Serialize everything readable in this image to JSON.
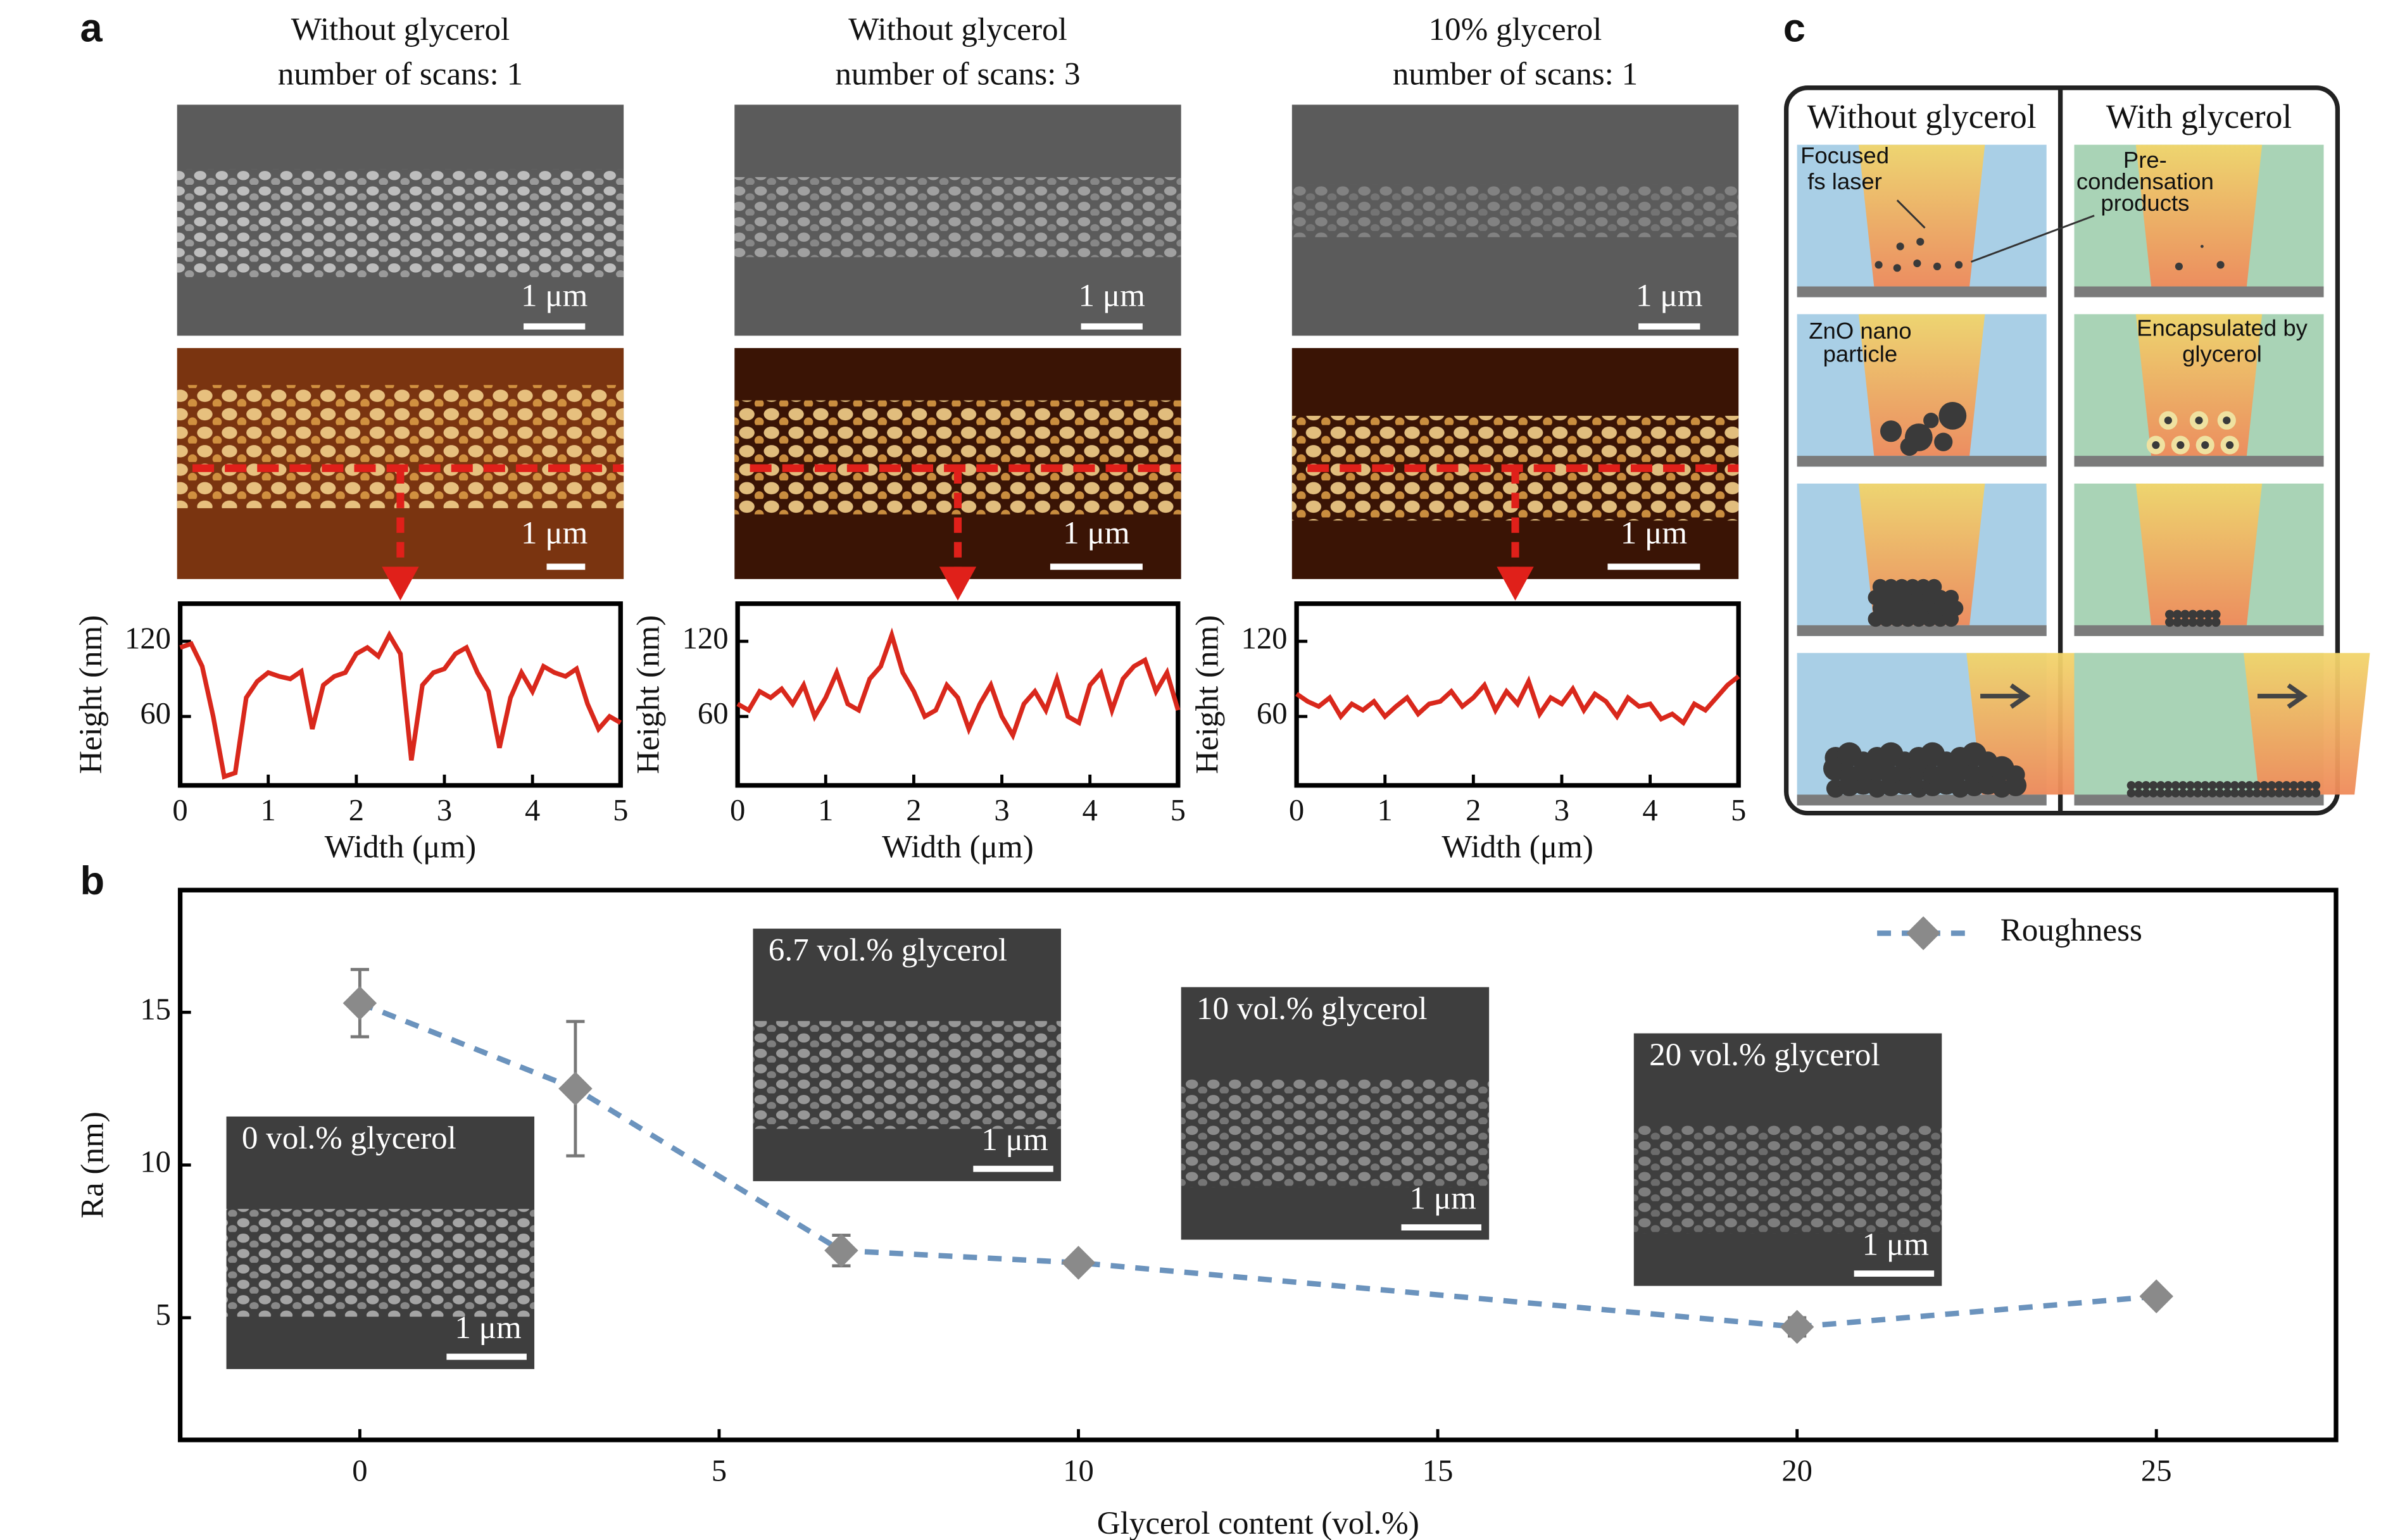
{
  "panel_labels": [
    "a",
    "b",
    "c"
  ],
  "sem_panels": [
    {
      "title": [
        "Without glycerol",
        "number of scans: 1"
      ],
      "sem_scale": "1 μm",
      "afm_scale": "1 μm"
    },
    {
      "title": [
        "Without glycerol",
        "number of scans: 3"
      ],
      "sem_scale": "1 μm",
      "afm_scale": "1 μm"
    },
    {
      "title": [
        "10% glycerol",
        "number of scans: 1"
      ],
      "sem_scale": "1 μm",
      "afm_scale": "1 μm"
    }
  ],
  "chart_data": [
    {
      "type": "line",
      "xlabel": "Width (μm)",
      "ylabel": "Height (nm)",
      "xlim": [
        0,
        5
      ],
      "ylim": [
        5,
        150
      ],
      "xticks": [
        0,
        1,
        2,
        3,
        4,
        5
      ],
      "yticks": [
        60,
        120
      ],
      "x": [
        0,
        0.125,
        0.25,
        0.375,
        0.5,
        0.625,
        0.75,
        0.875,
        1,
        1.125,
        1.25,
        1.375,
        1.5,
        1.625,
        1.75,
        1.875,
        2,
        2.125,
        2.25,
        2.375,
        2.5,
        2.625,
        2.75,
        2.875,
        3,
        3.125,
        3.25,
        3.375,
        3.5,
        3.625,
        3.75,
        3.875,
        4,
        4.125,
        4.25,
        4.375,
        4.5,
        4.625,
        4.75,
        4.875,
        5
      ],
      "color": "#d9281c",
      "values": [
        115,
        118,
        100,
        60,
        12,
        15,
        75,
        88,
        95,
        92,
        90,
        96,
        50,
        85,
        92,
        95,
        110,
        115,
        108,
        125,
        110,
        25,
        85,
        95,
        98,
        110,
        115,
        95,
        80,
        35,
        75,
        95,
        80,
        100,
        95,
        92,
        98,
        70,
        50,
        60,
        55
      ]
    },
    {
      "type": "line",
      "xlabel": "Width (μm)",
      "ylabel": "Height (nm)",
      "xlim": [
        0,
        5
      ],
      "ylim": [
        5,
        150
      ],
      "xticks": [
        0,
        1,
        2,
        3,
        4,
        5
      ],
      "yticks": [
        60,
        120
      ],
      "x": [
        0,
        0.125,
        0.25,
        0.375,
        0.5,
        0.625,
        0.75,
        0.875,
        1,
        1.125,
        1.25,
        1.375,
        1.5,
        1.625,
        1.75,
        1.875,
        2,
        2.125,
        2.25,
        2.375,
        2.5,
        2.625,
        2.75,
        2.875,
        3,
        3.125,
        3.25,
        3.375,
        3.5,
        3.625,
        3.75,
        3.875,
        4,
        4.125,
        4.25,
        4.375,
        4.5,
        4.625,
        4.75,
        4.875,
        5
      ],
      "color": "#d9281c",
      "values": [
        70,
        65,
        80,
        75,
        82,
        70,
        85,
        60,
        75,
        95,
        70,
        65,
        90,
        100,
        125,
        95,
        80,
        60,
        65,
        85,
        75,
        50,
        70,
        85,
        60,
        45,
        70,
        80,
        65,
        90,
        60,
        55,
        85,
        95,
        65,
        90,
        100,
        105,
        80,
        95,
        65
      ]
    },
    {
      "type": "line",
      "xlabel": "Width (μm)",
      "ylabel": "Height (nm)",
      "xlim": [
        0,
        5
      ],
      "ylim": [
        5,
        150
      ],
      "xticks": [
        0,
        1,
        2,
        3,
        4,
        5
      ],
      "yticks": [
        60,
        120
      ],
      "x": [
        0,
        0.125,
        0.25,
        0.375,
        0.5,
        0.625,
        0.75,
        0.875,
        1,
        1.125,
        1.25,
        1.375,
        1.5,
        1.625,
        1.75,
        1.875,
        2,
        2.125,
        2.25,
        2.375,
        2.5,
        2.625,
        2.75,
        2.875,
        3,
        3.125,
        3.25,
        3.375,
        3.5,
        3.625,
        3.75,
        3.875,
        4,
        4.125,
        4.25,
        4.375,
        4.5,
        4.625,
        4.75,
        4.875,
        5
      ],
      "color": "#d9281c",
      "values": [
        78,
        72,
        68,
        75,
        60,
        70,
        65,
        72,
        60,
        68,
        75,
        62,
        70,
        72,
        80,
        68,
        75,
        85,
        65,
        80,
        70,
        88,
        62,
        75,
        70,
        82,
        65,
        78,
        72,
        60,
        75,
        68,
        70,
        58,
        62,
        55,
        70,
        65,
        75,
        85,
        92
      ]
    },
    {
      "type": "errorline",
      "xlabel": "Glycerol content (vol.%)",
      "ylabel": "Ra (nm)",
      "xlim": [
        -2.5,
        27.5
      ],
      "ylim": [
        1,
        19
      ],
      "xticks": [
        0,
        5,
        10,
        15,
        20,
        25
      ],
      "yticks": [
        5,
        10,
        15
      ],
      "legend": "top-right",
      "x": [
        0,
        3,
        6.7,
        10,
        20,
        25
      ],
      "series": [
        {
          "name": "Roughness",
          "color": "#6b93bd",
          "marker_color": "#8a8a8a",
          "values": [
            15.3,
            12.5,
            7.2,
            6.8,
            4.7,
            5.7
          ],
          "errors": [
            1.1,
            2.2,
            0.5,
            0,
            0.3,
            0
          ]
        }
      ]
    }
  ],
  "insets": [
    {
      "label": "0 vol.% glycerol",
      "scale": "1 μm"
    },
    {
      "label": "6.7 vol.% glycerol",
      "scale": "1 μm"
    },
    {
      "label": "10 vol.% glycerol",
      "scale": "1 μm"
    },
    {
      "label": "20 vol.% glycerol",
      "scale": "1 μm"
    }
  ],
  "schematic": {
    "columns": [
      "Without glycerol",
      "With glycerol"
    ],
    "laser": [
      "Focused",
      "fs laser"
    ],
    "products": [
      "Pre-",
      "condensation",
      "products"
    ],
    "particle": [
      "ZnO nano",
      "particle"
    ],
    "encapsulated": [
      "Encapsulated by",
      "glycerol"
    ]
  }
}
